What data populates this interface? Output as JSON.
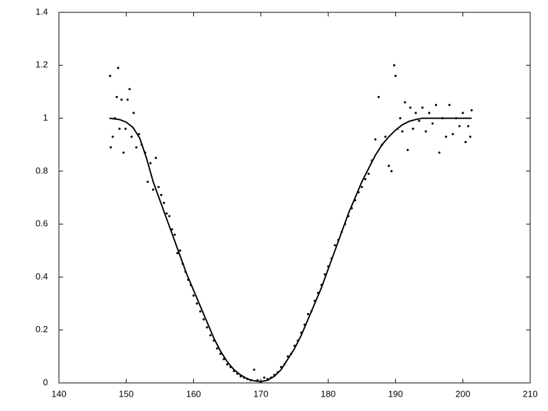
{
  "chart_data": {
    "type": "scatter",
    "xlim": [
      140,
      210
    ],
    "ylim": [
      0,
      1.4
    ],
    "xticks": [
      140,
      150,
      160,
      170,
      180,
      190,
      200,
      210
    ],
    "yticks": [
      0,
      0.2,
      0.4,
      0.6,
      0.8,
      1,
      1.2,
      1.4
    ],
    "grid": false,
    "series": [
      {
        "kind": "points",
        "color": "#000000",
        "x": [
          147.6,
          147.7,
          148.0,
          148.3,
          148.6,
          148.8,
          149.0,
          149.3,
          149.6,
          149.9,
          150.2,
          150.5,
          150.8,
          151.1,
          151.5,
          151.9,
          152.3,
          152.8,
          153.2,
          153.6,
          154.0,
          154.4,
          154.8,
          155.2,
          155.6,
          156.0,
          156.4,
          156.8,
          157.2,
          157.6,
          158.0,
          158.4,
          158.8,
          159.2,
          159.6,
          160.0,
          160.5,
          161.0,
          161.5,
          162.0,
          162.5,
          163.0,
          163.5,
          164.0,
          164.5,
          165.0,
          165.5,
          166.0,
          166.5,
          167.0,
          167.5,
          168.0,
          168.5,
          169.0,
          169.5,
          170.0,
          170.5,
          171.0,
          171.5,
          172.0,
          172.5,
          173.0,
          173.5,
          174.0,
          174.5,
          175.0,
          175.5,
          176.0,
          176.5,
          177.0,
          177.5,
          178.0,
          178.5,
          179.0,
          179.5,
          180.0,
          180.5,
          181.0,
          181.5,
          182.0,
          182.5,
          183.0,
          183.5,
          184.0,
          184.5,
          185.0,
          185.5,
          186.0,
          186.5,
          187.0,
          187.5,
          188.0,
          188.5,
          189.0,
          189.4,
          189.8,
          190.0,
          190.3,
          190.7,
          191.0,
          191.4,
          191.8,
          192.2,
          192.6,
          193.0,
          193.5,
          194.0,
          194.5,
          195.0,
          195.5,
          196.0,
          196.5,
          197.0,
          197.5,
          198.0,
          198.5,
          199.0,
          199.5,
          200.0,
          200.4,
          200.8,
          201.1,
          201.3
        ],
        "values": [
          1.16,
          0.89,
          0.93,
          1.0,
          1.08,
          1.19,
          0.96,
          1.07,
          0.87,
          0.96,
          1.07,
          1.11,
          0.93,
          1.02,
          0.89,
          0.94,
          0.9,
          0.87,
          0.76,
          0.83,
          0.73,
          0.85,
          0.74,
          0.71,
          0.68,
          0.64,
          0.63,
          0.58,
          0.56,
          0.49,
          0.5,
          0.45,
          0.42,
          0.39,
          0.37,
          0.33,
          0.3,
          0.27,
          0.24,
          0.21,
          0.18,
          0.16,
          0.13,
          0.11,
          0.09,
          0.07,
          0.06,
          0.045,
          0.035,
          0.025,
          0.02,
          0.015,
          0.01,
          0.05,
          0.01,
          0.005,
          0.02,
          0.015,
          0.02,
          0.03,
          0.04,
          0.06,
          0.07,
          0.1,
          0.11,
          0.14,
          0.16,
          0.19,
          0.22,
          0.26,
          0.27,
          0.31,
          0.34,
          0.37,
          0.41,
          0.44,
          0.47,
          0.52,
          0.54,
          0.57,
          0.6,
          0.63,
          0.66,
          0.69,
          0.72,
          0.74,
          0.77,
          0.79,
          0.84,
          0.92,
          1.08,
          0.9,
          0.93,
          0.82,
          0.8,
          1.2,
          1.16,
          0.96,
          1.0,
          0.95,
          1.06,
          0.88,
          1.04,
          0.96,
          1.02,
          0.99,
          1.04,
          0.95,
          1.02,
          0.98,
          1.05,
          0.87,
          1.0,
          0.93,
          1.05,
          0.94,
          1.0,
          0.97,
          1.02,
          0.91,
          0.97,
          0.93,
          1.03
        ]
      },
      {
        "kind": "line",
        "color": "#000000",
        "x": [
          147.5,
          149,
          150,
          151,
          152,
          153,
          154,
          155,
          156,
          157,
          158,
          159,
          160,
          161,
          162,
          163,
          164,
          165,
          166,
          167,
          168,
          169,
          170,
          171,
          172,
          173,
          174,
          175,
          176,
          177,
          178,
          179,
          180,
          181,
          182,
          183,
          184,
          185,
          186,
          187,
          188,
          189,
          190,
          191,
          192,
          193,
          194,
          196,
          198,
          200,
          201.3
        ],
        "values": [
          1.0,
          0.995,
          0.985,
          0.965,
          0.925,
          0.85,
          0.76,
          0.69,
          0.62,
          0.55,
          0.48,
          0.41,
          0.35,
          0.29,
          0.23,
          0.17,
          0.12,
          0.08,
          0.05,
          0.03,
          0.015,
          0.008,
          0.005,
          0.01,
          0.025,
          0.05,
          0.09,
          0.13,
          0.18,
          0.24,
          0.3,
          0.36,
          0.43,
          0.5,
          0.57,
          0.64,
          0.7,
          0.76,
          0.81,
          0.86,
          0.9,
          0.93,
          0.955,
          0.975,
          0.988,
          0.995,
          1.0,
          1.0,
          1.0,
          1.0,
          1.0
        ]
      }
    ]
  }
}
